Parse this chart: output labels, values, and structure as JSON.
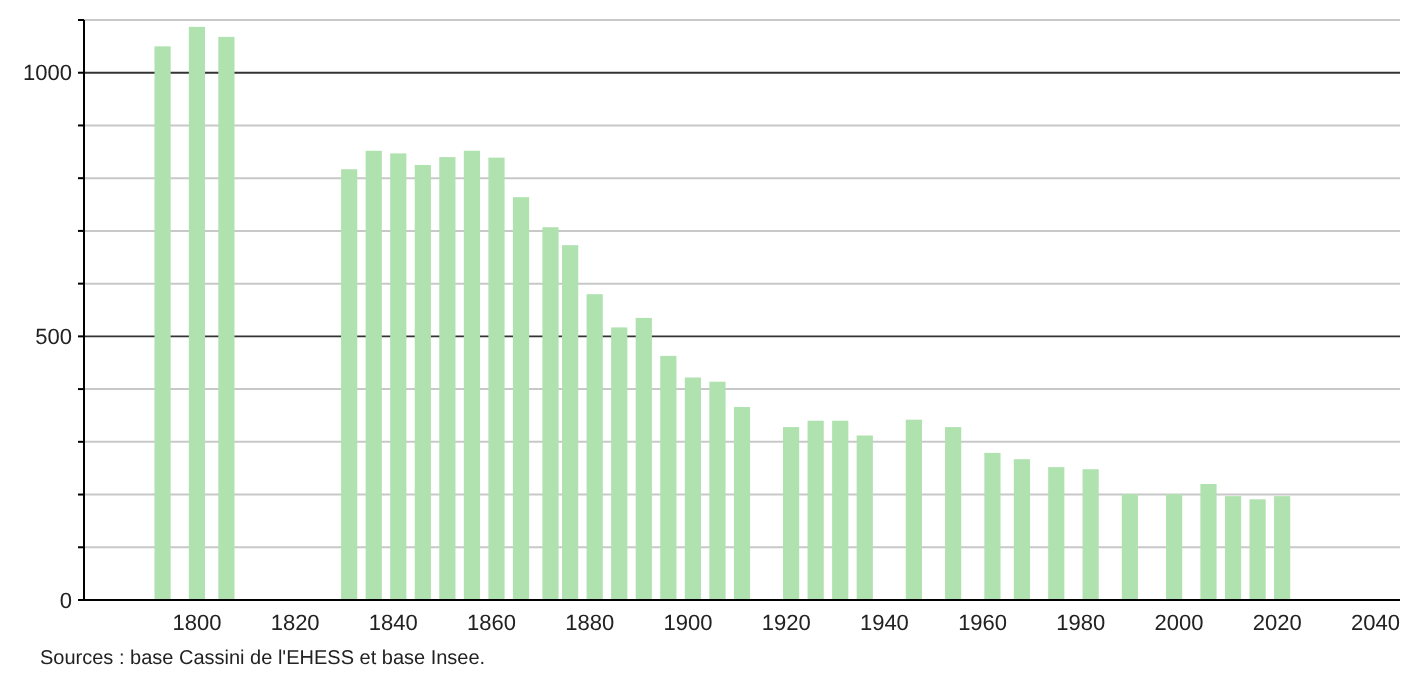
{
  "chart_data": {
    "type": "bar",
    "x": [
      1793,
      1800,
      1806,
      1831,
      1836,
      1841,
      1846,
      1851,
      1856,
      1861,
      1866,
      1872,
      1876,
      1881,
      1886,
      1891,
      1896,
      1901,
      1906,
      1911,
      1921,
      1926,
      1931,
      1936,
      1946,
      1954,
      1962,
      1968,
      1975,
      1982,
      1990,
      1999,
      2006,
      2011,
      2016,
      2021
    ],
    "values": [
      1050,
      1087,
      1068,
      817,
      852,
      847,
      825,
      840,
      852,
      839,
      764,
      707,
      673,
      580,
      517,
      535,
      463,
      422,
      414,
      366,
      328,
      340,
      340,
      312,
      342,
      328,
      279,
      267,
      252,
      248,
      201,
      201,
      220,
      197,
      191,
      197
    ],
    "color": "#b0e2b0",
    "xlim": [
      1777,
      2045
    ],
    "xticks": [
      1800,
      1820,
      1840,
      1860,
      1880,
      1900,
      1920,
      1940,
      1960,
      1980,
      2000,
      2020,
      2040
    ],
    "ylim": [
      0,
      1100
    ],
    "yticks": [
      0,
      {
        "value": 100,
        "label": null
      },
      {
        "value": 200,
        "label": null
      },
      {
        "value": 300,
        "label": null
      },
      {
        "value": 400,
        "label": null
      },
      500,
      {
        "value": 600,
        "label": null
      },
      {
        "value": 700,
        "label": null
      },
      {
        "value": 800,
        "label": null
      },
      {
        "value": 900,
        "label": null
      },
      1000,
      {
        "value": 1100,
        "label": null
      }
    ],
    "grid": "y",
    "annotations": [
      "Sources : base Cassini de l'EHESS et base Insee."
    ]
  }
}
